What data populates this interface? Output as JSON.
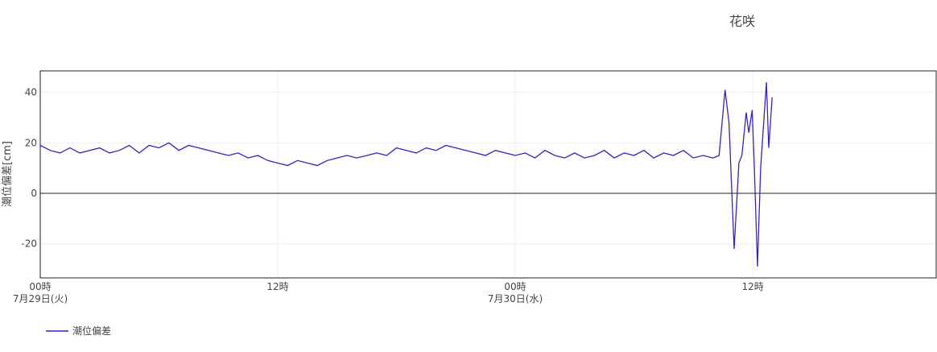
{
  "chart_data": {
    "type": "line",
    "title": "花咲",
    "ylabel": "潮位偏差[cm]",
    "x": [
      0,
      0.5,
      1,
      1.5,
      2,
      2.5,
      3,
      3.5,
      4,
      4.5,
      5,
      5.5,
      6,
      6.5,
      7,
      7.5,
      8,
      8.5,
      9,
      9.5,
      10,
      10.5,
      11,
      11.5,
      12,
      12.5,
      13,
      13.5,
      14,
      14.5,
      15,
      15.5,
      16,
      16.5,
      17,
      17.5,
      18,
      18.5,
      19,
      19.5,
      20,
      20.5,
      21,
      21.5,
      22,
      22.5,
      23,
      23.5,
      24,
      24.5,
      25,
      25.5,
      26,
      26.5,
      27,
      27.5,
      28,
      28.5,
      29,
      29.5,
      30,
      30.5,
      31,
      31.5,
      32,
      32.5,
      33,
      33.5,
      34,
      34.3,
      34.6,
      34.8,
      35.06,
      35.3,
      35.45,
      35.67,
      35.8,
      35.97,
      36.08,
      36.24,
      36.4,
      36.69,
      36.81,
      36.98
    ],
    "series": [
      {
        "name": "潮位偏差",
        "color": "#3b1fc2",
        "values": [
          19,
          17,
          16,
          18,
          16,
          17,
          18,
          16,
          17,
          19,
          16,
          19,
          18,
          20,
          17,
          19,
          18,
          17,
          16,
          15,
          16,
          14,
          15,
          13,
          12,
          11,
          13,
          12,
          11,
          13,
          14,
          15,
          14,
          15,
          16,
          15,
          18,
          17,
          16,
          18,
          17,
          19,
          18,
          17,
          16,
          15,
          17,
          16,
          15,
          16,
          14,
          17,
          15,
          14,
          16,
          14,
          15,
          17,
          14,
          16,
          15,
          17,
          14,
          16,
          15,
          17,
          14,
          15,
          14,
          15,
          41,
          28,
          -22,
          12,
          15,
          32,
          24,
          33,
          10,
          -29,
          10,
          44,
          18,
          38
        ]
      }
    ],
    "xlim": [
      0,
      45.27
    ],
    "xticks": [
      {
        "value": 0,
        "label": "00時",
        "sublabel": "7月29日(火)"
      },
      {
        "value": 12,
        "label": "12時"
      },
      {
        "value": 24,
        "label": "00時",
        "sublabel": "7月30日(水)"
      },
      {
        "value": 36,
        "label": "12時"
      }
    ],
    "ylim": [
      -33.5,
      48.5
    ],
    "yticks": [
      -20,
      0,
      20,
      40
    ],
    "grid": true,
    "zeroline": true,
    "legend": "bottom-left"
  }
}
